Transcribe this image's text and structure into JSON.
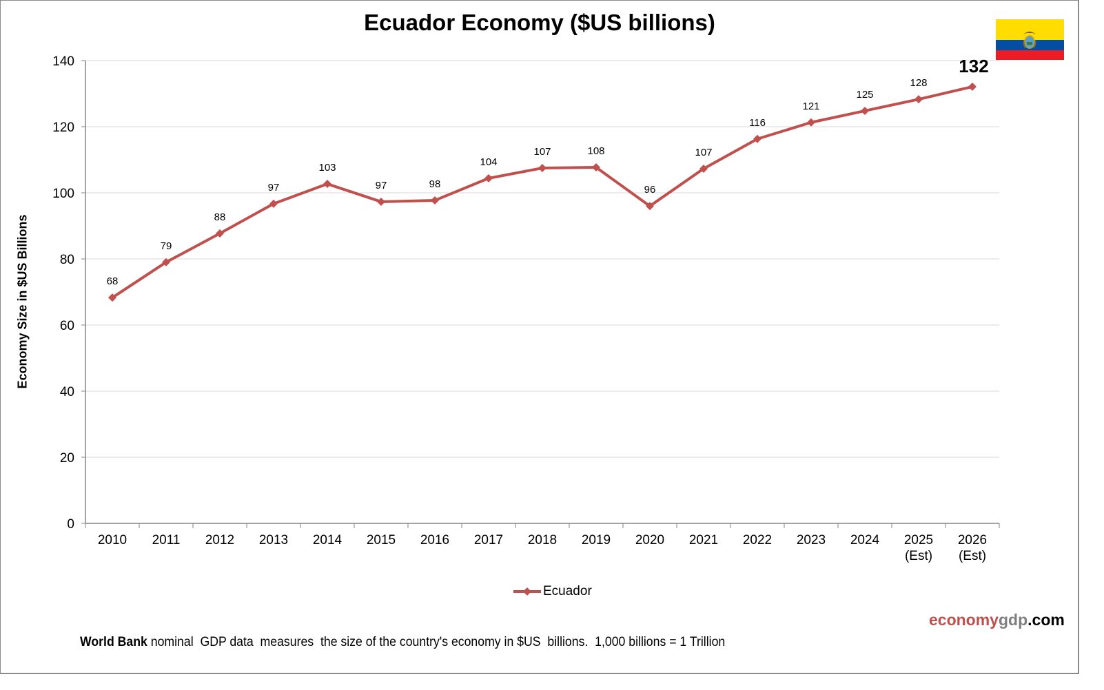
{
  "chart_data": {
    "type": "line",
    "title": "Ecuador Economy ($US billions)",
    "xlabel": "",
    "ylabel": "Economy Size in $US Billions",
    "ylim": [
      0,
      140
    ],
    "yticks": [
      0,
      20,
      40,
      60,
      80,
      100,
      120,
      140
    ],
    "grid": true,
    "legend_position": "bottom-center",
    "categories": [
      [
        "2010"
      ],
      [
        "2011"
      ],
      [
        "2012"
      ],
      [
        "2013"
      ],
      [
        "2014"
      ],
      [
        "2015"
      ],
      [
        "2016"
      ],
      [
        "2017"
      ],
      [
        "2018"
      ],
      [
        "2019"
      ],
      [
        "2020"
      ],
      [
        "2021"
      ],
      [
        "2022"
      ],
      [
        "2023"
      ],
      [
        "2024"
      ],
      [
        "2025",
        "(Est)"
      ],
      [
        "2026",
        "(Est)"
      ]
    ],
    "series": [
      {
        "name": "Ecuador",
        "color": "#c0504d",
        "values": [
          68.3,
          79.0,
          87.7,
          96.7,
          102.7,
          97.3,
          97.7,
          104.4,
          107.5,
          107.7,
          96.0,
          107.3,
          116.3,
          121.3,
          124.8,
          128.3,
          132.1
        ],
        "data_labels": [
          "68",
          "79",
          "88",
          "97",
          "103",
          "97",
          "98",
          "104",
          "107",
          "108",
          "96",
          "107",
          "116",
          "121",
          "125",
          "128",
          "132"
        ],
        "highlight_last_label": true
      }
    ]
  },
  "flag": {
    "country": "Ecuador",
    "icon": "ecuador-flag-icon",
    "colors": [
      "#ffdd00",
      "#034ea2",
      "#ed1c24"
    ]
  },
  "legend": {
    "label": "Ecuador"
  },
  "branding": {
    "part1": "economy",
    "part2": "gdp",
    "part3": ".com"
  },
  "footnote": {
    "bold": "World Bank",
    "text": " nominal  GDP data  measures  the size of the country's economy in $US  billions.  1,000 billions = 1 Trillion"
  }
}
